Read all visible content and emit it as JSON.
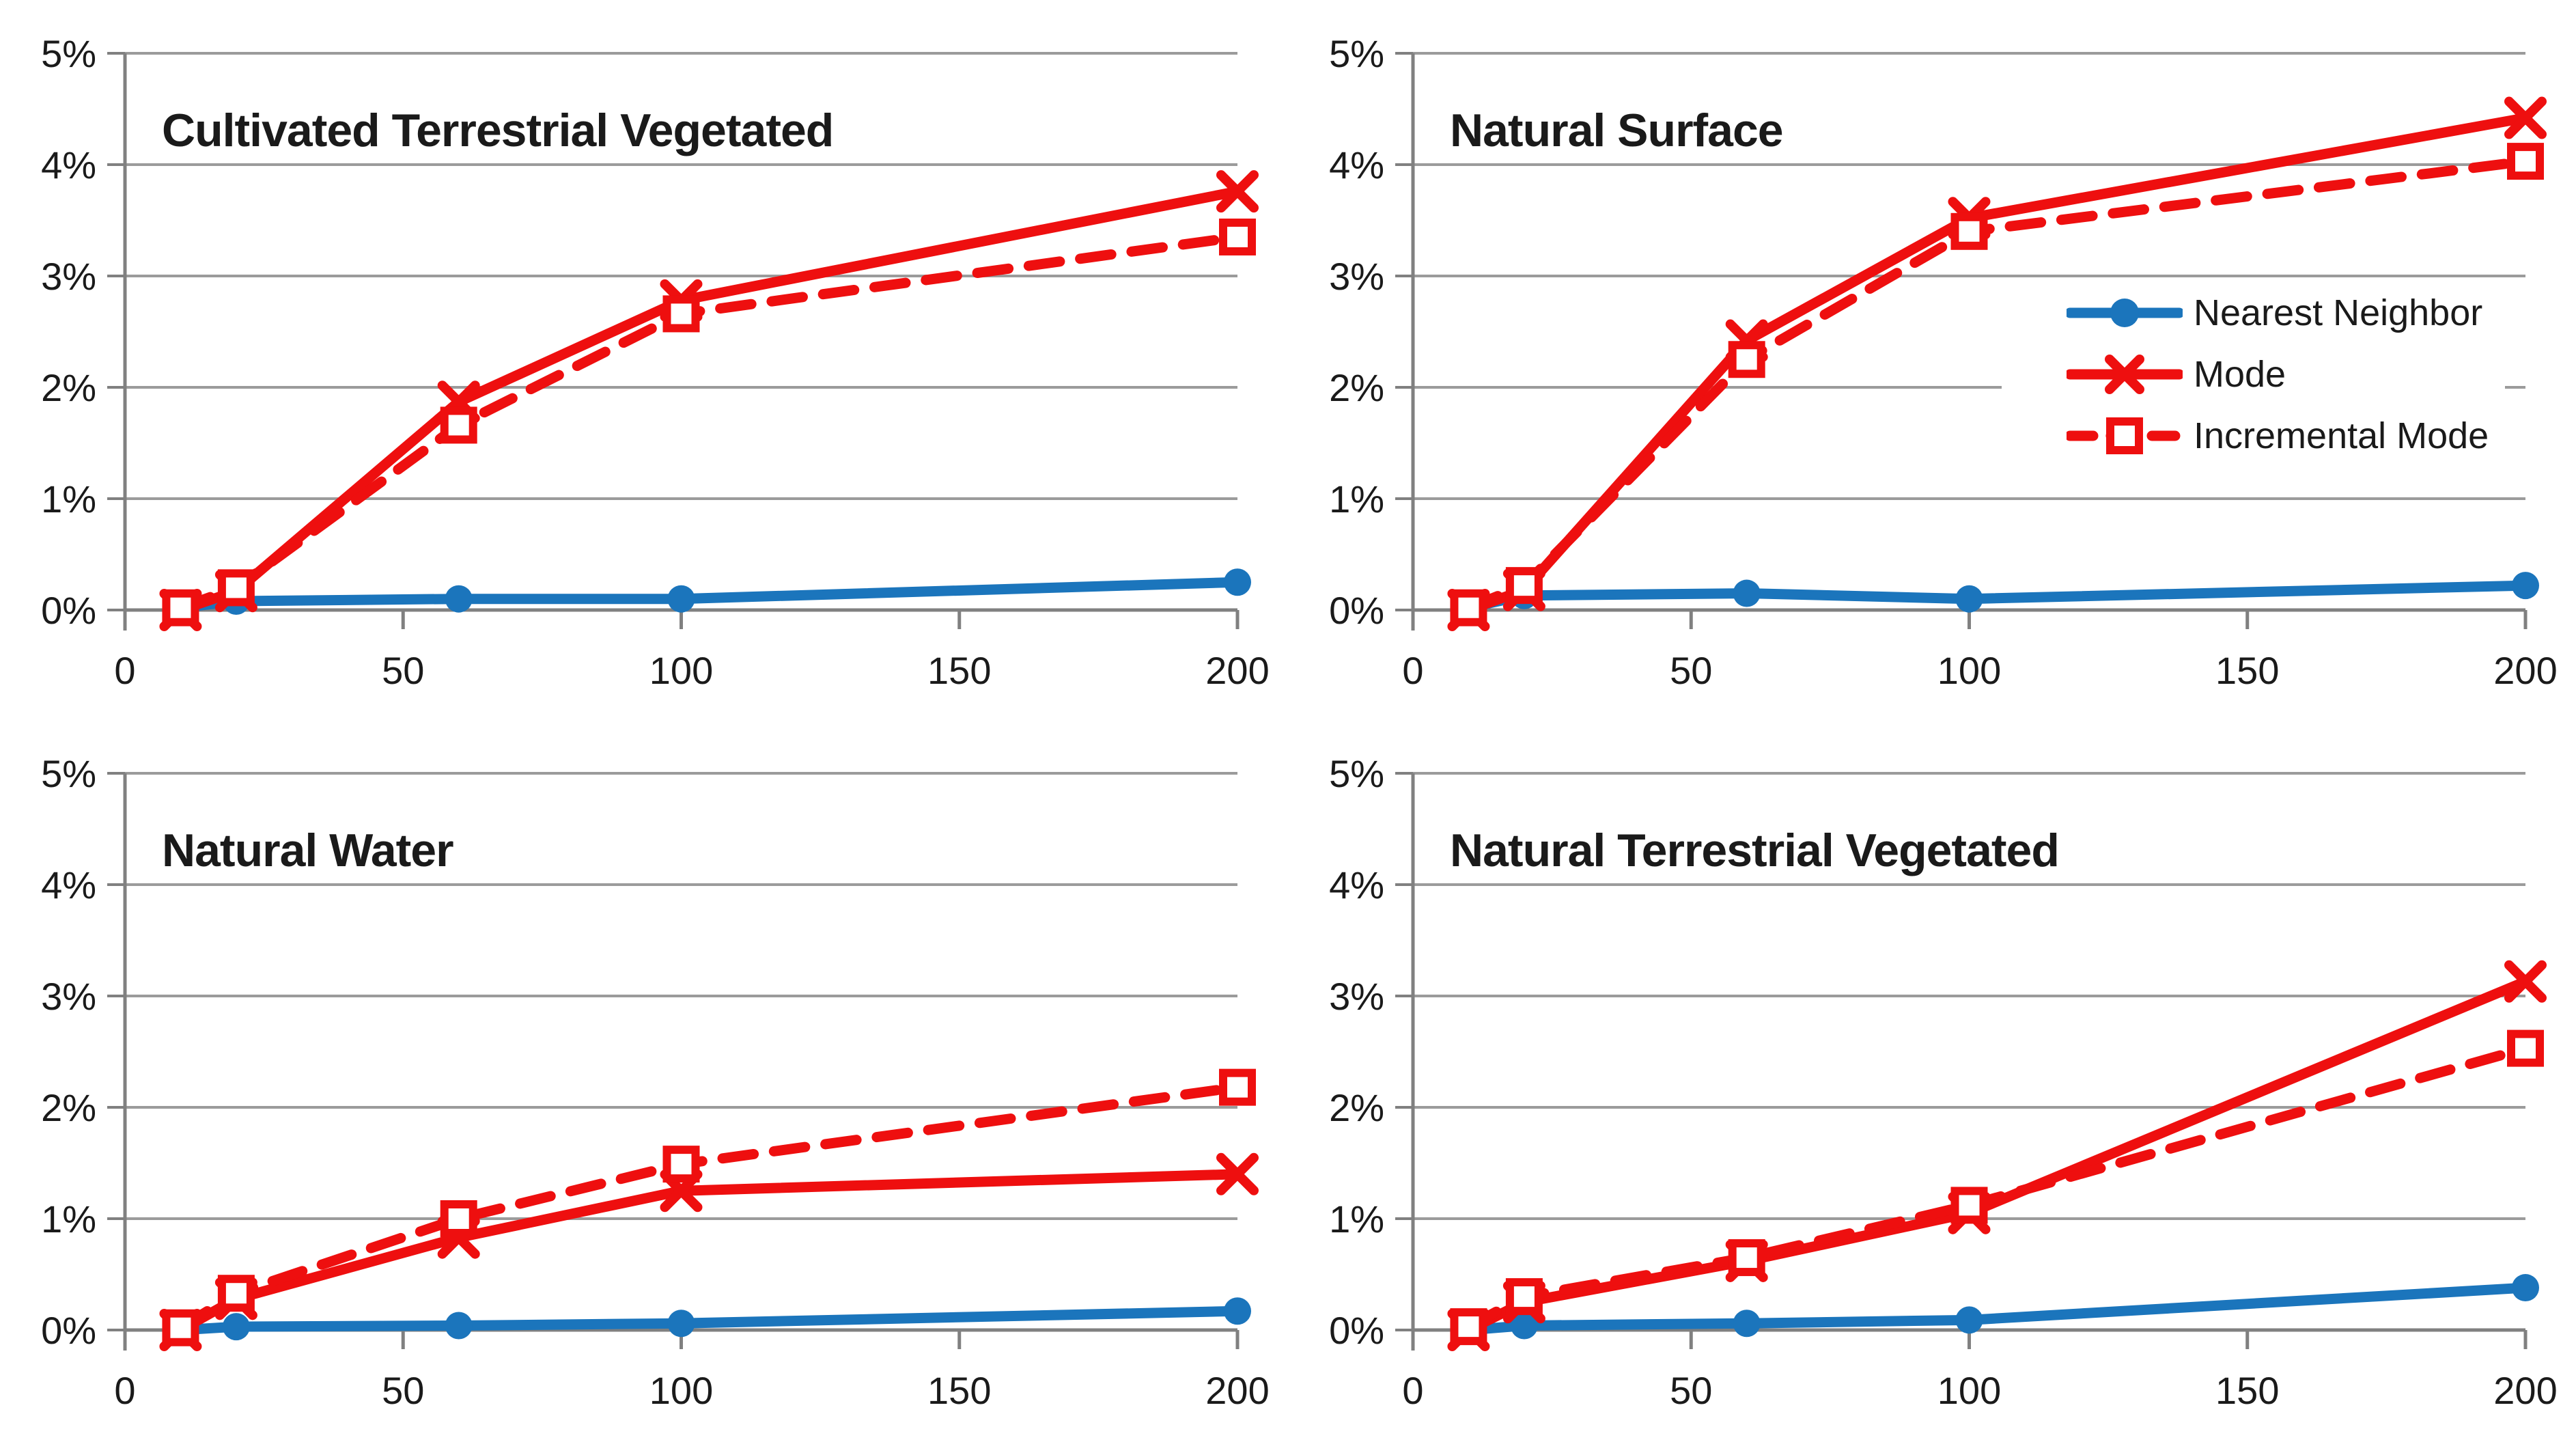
{
  "page": {
    "background": "#ffffff"
  },
  "colors": {
    "nearest_neighbor": "#1B75BC",
    "mode": "#EE0F0F",
    "incremental_mode": "#EE0F0F",
    "gridline": "#9B9B9B",
    "axis": "#808080",
    "label_text": "#1A1A1A"
  },
  "legend": {
    "location": "inside top-right chart, middle-right, white background",
    "items": [
      {
        "label": "Nearest Neighbor",
        "marker": "circle",
        "line": "solid",
        "color_key": "nearest_neighbor"
      },
      {
        "label": "Mode",
        "marker": "x",
        "line": "solid",
        "color_key": "mode"
      },
      {
        "label": "Incremental Mode",
        "marker": "square",
        "line": "dashed",
        "color_key": "incremental_mode"
      }
    ]
  },
  "chart_data": [
    {
      "type": "line",
      "title": "Cultivated Terrestrial Vegetated",
      "y_unit": "percent",
      "grid": true,
      "xlim": [
        0,
        200
      ],
      "ylim": [
        0,
        5
      ],
      "x_ticks": [
        0,
        50,
        100,
        150,
        200
      ],
      "y_ticks": [
        "0%",
        "1%",
        "2%",
        "3%",
        "4%",
        "5%"
      ],
      "x": [
        10,
        20,
        60,
        100,
        200
      ],
      "series": [
        {
          "name": "Nearest Neighbor",
          "color_key": "nearest_neighbor",
          "marker": "circle",
          "dash": "solid",
          "values": [
            0.02,
            0.08,
            0.1,
            0.1,
            0.25
          ]
        },
        {
          "name": "Mode",
          "color_key": "mode",
          "marker": "x",
          "dash": "solid",
          "values": [
            0.0,
            0.17,
            1.87,
            2.78,
            3.76
          ]
        },
        {
          "name": "Incremental Mode",
          "color_key": "incremental_mode",
          "marker": "square",
          "dash": "dashed",
          "values": [
            0.02,
            0.2,
            1.66,
            2.66,
            3.35
          ]
        }
      ],
      "legend": false
    },
    {
      "type": "line",
      "title": "Natural Surface",
      "y_unit": "percent",
      "grid": true,
      "xlim": [
        0,
        200
      ],
      "ylim": [
        0,
        5
      ],
      "x_ticks": [
        0,
        50,
        100,
        150,
        200
      ],
      "y_ticks": [
        "0%",
        "1%",
        "2%",
        "3%",
        "4%",
        "5%"
      ],
      "x": [
        10,
        20,
        60,
        100,
        200
      ],
      "series": [
        {
          "name": "Nearest Neighbor",
          "color_key": "nearest_neighbor",
          "marker": "circle",
          "dash": "solid",
          "values": [
            0.02,
            0.13,
            0.15,
            0.1,
            0.22
          ]
        },
        {
          "name": "Mode",
          "color_key": "mode",
          "marker": "x",
          "dash": "solid",
          "values": [
            0.0,
            0.18,
            2.42,
            3.52,
            4.42
          ]
        },
        {
          "name": "Incremental Mode",
          "color_key": "incremental_mode",
          "marker": "square",
          "dash": "dashed",
          "values": [
            0.02,
            0.22,
            2.25,
            3.4,
            4.03
          ]
        }
      ],
      "legend": true
    },
    {
      "type": "line",
      "title": "Natural Water",
      "y_unit": "percent",
      "grid": true,
      "xlim": [
        0,
        200
      ],
      "ylim": [
        0,
        5
      ],
      "x_ticks": [
        0,
        50,
        100,
        150,
        200
      ],
      "y_ticks": [
        "0%",
        "1%",
        "2%",
        "3%",
        "4%",
        "5%"
      ],
      "x": [
        10,
        20,
        60,
        100,
        200
      ],
      "series": [
        {
          "name": "Nearest Neighbor",
          "color_key": "nearest_neighbor",
          "marker": "circle",
          "dash": "solid",
          "values": [
            0.0,
            0.03,
            0.04,
            0.06,
            0.17
          ]
        },
        {
          "name": "Mode",
          "color_key": "mode",
          "marker": "x",
          "dash": "solid",
          "values": [
            0.0,
            0.28,
            0.83,
            1.25,
            1.4
          ]
        },
        {
          "name": "Incremental Mode",
          "color_key": "incremental_mode",
          "marker": "square",
          "dash": "dashed",
          "values": [
            0.02,
            0.33,
            1.0,
            1.49,
            2.18
          ]
        }
      ],
      "legend": false
    },
    {
      "type": "line",
      "title": "Natural Terrestrial Vegetated",
      "y_unit": "percent",
      "grid": true,
      "xlim": [
        0,
        200
      ],
      "ylim": [
        0,
        5
      ],
      "x_ticks": [
        0,
        50,
        100,
        150,
        200
      ],
      "y_ticks": [
        "0%",
        "1%",
        "2%",
        "3%",
        "4%",
        "5%"
      ],
      "x": [
        10,
        20,
        60,
        100,
        200
      ],
      "series": [
        {
          "name": "Nearest Neighbor",
          "color_key": "nearest_neighbor",
          "marker": "circle",
          "dash": "solid",
          "values": [
            0.0,
            0.04,
            0.06,
            0.09,
            0.38
          ]
        },
        {
          "name": "Mode",
          "color_key": "mode",
          "marker": "x",
          "dash": "solid",
          "values": [
            0.0,
            0.25,
            0.62,
            1.05,
            3.13
          ]
        },
        {
          "name": "Incremental Mode",
          "color_key": "incremental_mode",
          "marker": "square",
          "dash": "dashed",
          "values": [
            0.03,
            0.3,
            0.65,
            1.12,
            2.53
          ]
        }
      ],
      "legend": false
    }
  ]
}
